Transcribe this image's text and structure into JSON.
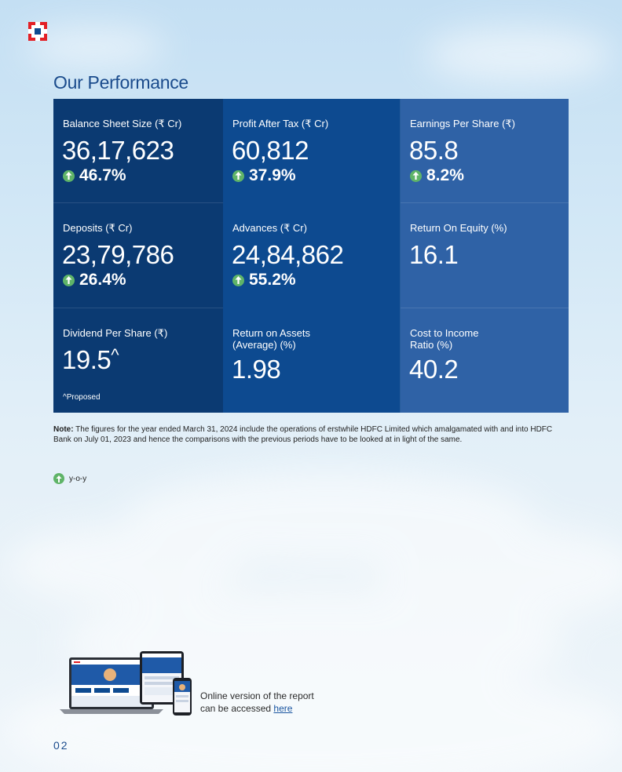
{
  "page": {
    "title": "Our Performance",
    "page_number": "02"
  },
  "metrics": [
    {
      "label": "Balance Sheet Size (₹ Cr)",
      "value": "36,17,623",
      "change": "46.7%"
    },
    {
      "label": "Profit After Tax (₹ Cr)",
      "value": "60,812",
      "change": "37.9%"
    },
    {
      "label": "Earnings Per Share (₹)",
      "value": "85.8",
      "change": "8.2%"
    },
    {
      "label": "Deposits (₹ Cr)",
      "value": "23,79,786",
      "change": "26.4%"
    },
    {
      "label": "Advances (₹ Cr)",
      "value": "24,84,862",
      "change": "55.2%"
    },
    {
      "label": "Return On Equity (%)",
      "value": "16.1"
    },
    {
      "label": "Dividend Per Share (₹)",
      "value": "19.5",
      "superscript": "^",
      "footnote": "^Proposed"
    },
    {
      "label": "Return on Assets (Average) (%)",
      "value": "1.98"
    },
    {
      "label": "Cost to Income Ratio (%)",
      "value": "40.2"
    }
  ],
  "note": {
    "prefix": "Note:",
    "text": " The figures for the year ended March 31, 2024 include the operations of erstwhile HDFC Limited which amalgamated with and into HDFC Bank on July 01, 2023 and hence the comparisons with the previous periods have to be looked at in light of the same."
  },
  "legend": {
    "text": "y-o-y"
  },
  "online": {
    "line1": "Online version of the report",
    "line2_prefix": "can be accessed ",
    "link_text": "here"
  },
  "colors": {
    "brand_red": "#e32026",
    "brand_blue": "#0d4a90",
    "up_green": "#5fb468"
  },
  "icons": {
    "logo": "bank-logo-icon",
    "change": "up-arrow-icon",
    "devices": "devices-image"
  }
}
